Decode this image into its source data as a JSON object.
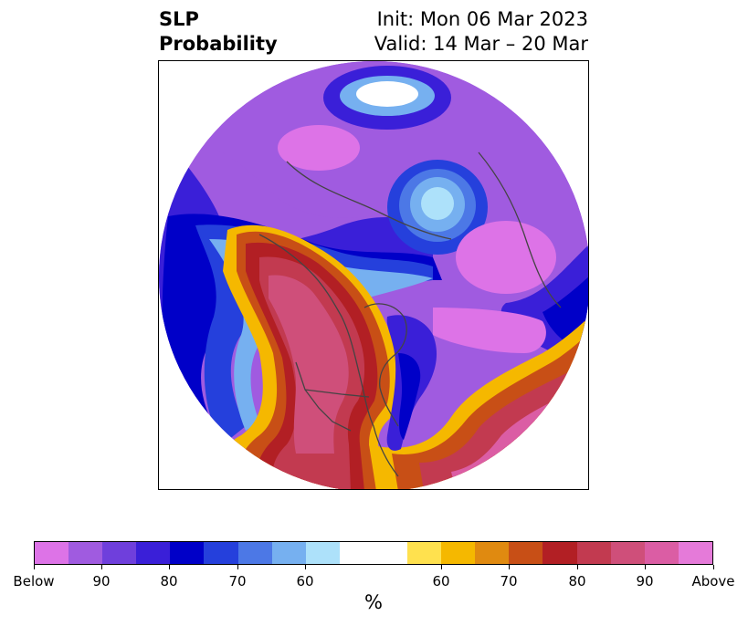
{
  "header": {
    "title_line1": "SLP",
    "title_line2": "Probability",
    "init": "Init: Mon 06 Mar 2023",
    "valid": "Valid: 14 Mar – 20 Mar"
  },
  "colorbar": {
    "colors": [
      "#dd73e7",
      "#a05be0",
      "#6f3fdc",
      "#3a1fd8",
      "#0000c8",
      "#2540dc",
      "#4c78e6",
      "#76b0f0",
      "#ade1fa",
      "#ffffff",
      "#ffe14e",
      "#f5b800",
      "#e08a10",
      "#c84f16",
      "#b21f24",
      "#c23a50",
      "#cf4f7a",
      "#db5da4",
      "#e57ad9"
    ],
    "tick_labels": [
      "Below",
      "90",
      "80",
      "70",
      "60",
      "60",
      "70",
      "80",
      "90",
      "Above"
    ],
    "unit": "%"
  }
}
